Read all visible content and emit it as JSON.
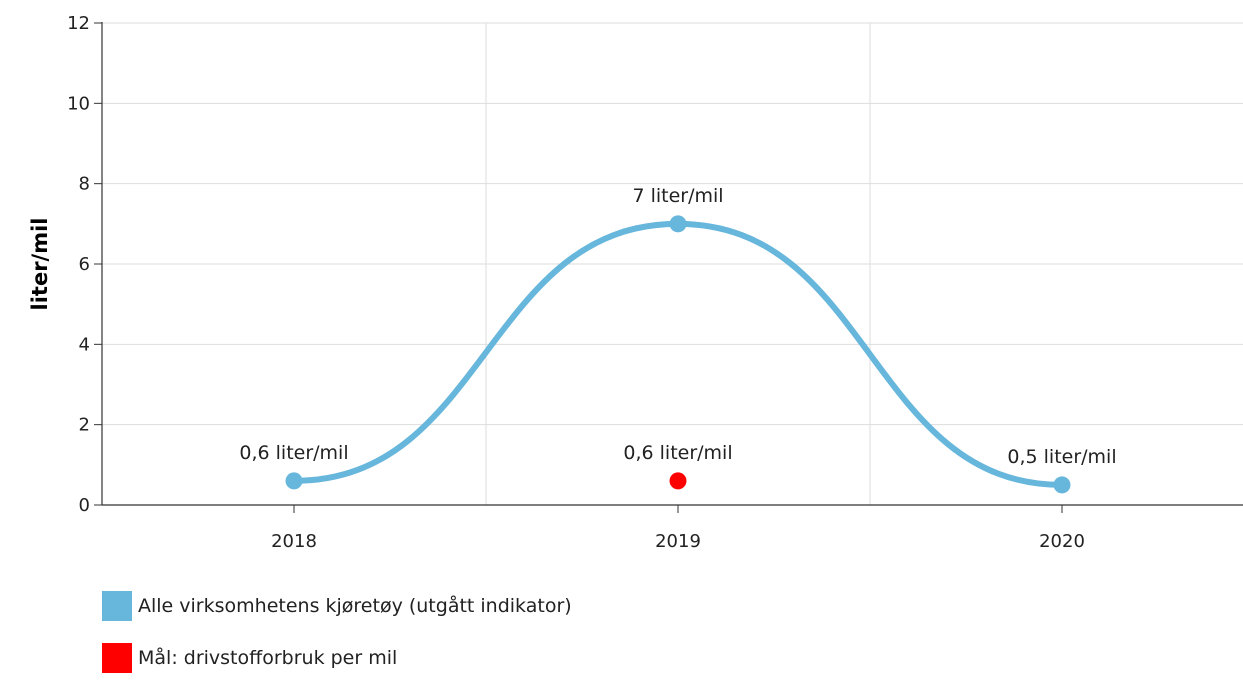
{
  "chart_data": {
    "type": "line",
    "title": "",
    "xlabel": "",
    "ylabel": "liter/mil",
    "categories": [
      "2018",
      "2019",
      "2020"
    ],
    "ylim": [
      0,
      12
    ],
    "yticks": [
      "0",
      "2",
      "4",
      "6",
      "8",
      "10",
      "12"
    ],
    "grid": true,
    "legend_position": "bottom-left",
    "series": [
      {
        "name": "Alle virksomhetens kjøretøy (utgått indikator)",
        "color": "#67b6dc",
        "values": [
          0.6,
          7,
          0.5
        ],
        "labels": [
          "0,6 liter/mil",
          "7 liter/mil",
          "0,5 liter/mil"
        ]
      },
      {
        "name": "Mål: drivstofforbruk per mil",
        "color": "#ff0000",
        "values": [
          null,
          0.6,
          null
        ],
        "labels": [
          "",
          "0,6 liter/mil",
          ""
        ]
      }
    ]
  }
}
